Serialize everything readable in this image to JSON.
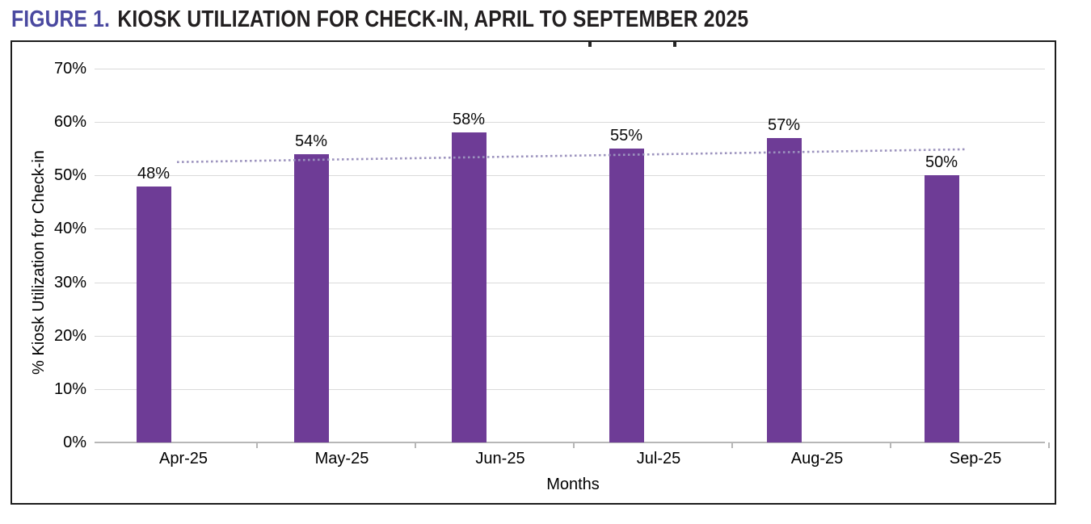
{
  "header": {
    "figure_label": "FIGURE 1.",
    "title": "KIOSK UTILIZATION FOR CHECK-IN, APRIL TO SEPTEMBER 2025"
  },
  "chart_data": {
    "type": "bar",
    "categories": [
      "Apr-25",
      "May-25",
      "Jun-25",
      "Jul-25",
      "Aug-25",
      "Sep-25"
    ],
    "values": [
      48,
      54,
      58,
      55,
      57,
      50
    ],
    "data_labels": [
      "48%",
      "54%",
      "58%",
      "55%",
      "57%",
      "50%"
    ],
    "xlabel": "Months",
    "ylabel": "% Kiosk Utilization for Check-in",
    "ylim": [
      0,
      70
    ],
    "ytick_step": 10,
    "yticks": [
      "0%",
      "10%",
      "20%",
      "30%",
      "40%",
      "50%",
      "60%",
      "70%"
    ],
    "grid": true,
    "legend": false,
    "bar_color": "#6E3C96",
    "trendline": {
      "type": "linear",
      "style": "dotted",
      "color": "#9C93BE",
      "start_pct": 52.5,
      "end_pct": 54.9
    }
  },
  "colors": {
    "figure_label": "#4A49A0",
    "title_text": "#221F20",
    "frame_border": "#1C1C1C",
    "gridline": "#DADADA",
    "axis_line": "#B7B7B7",
    "bar": "#6E3C96",
    "trendline": "#9C93BE"
  }
}
